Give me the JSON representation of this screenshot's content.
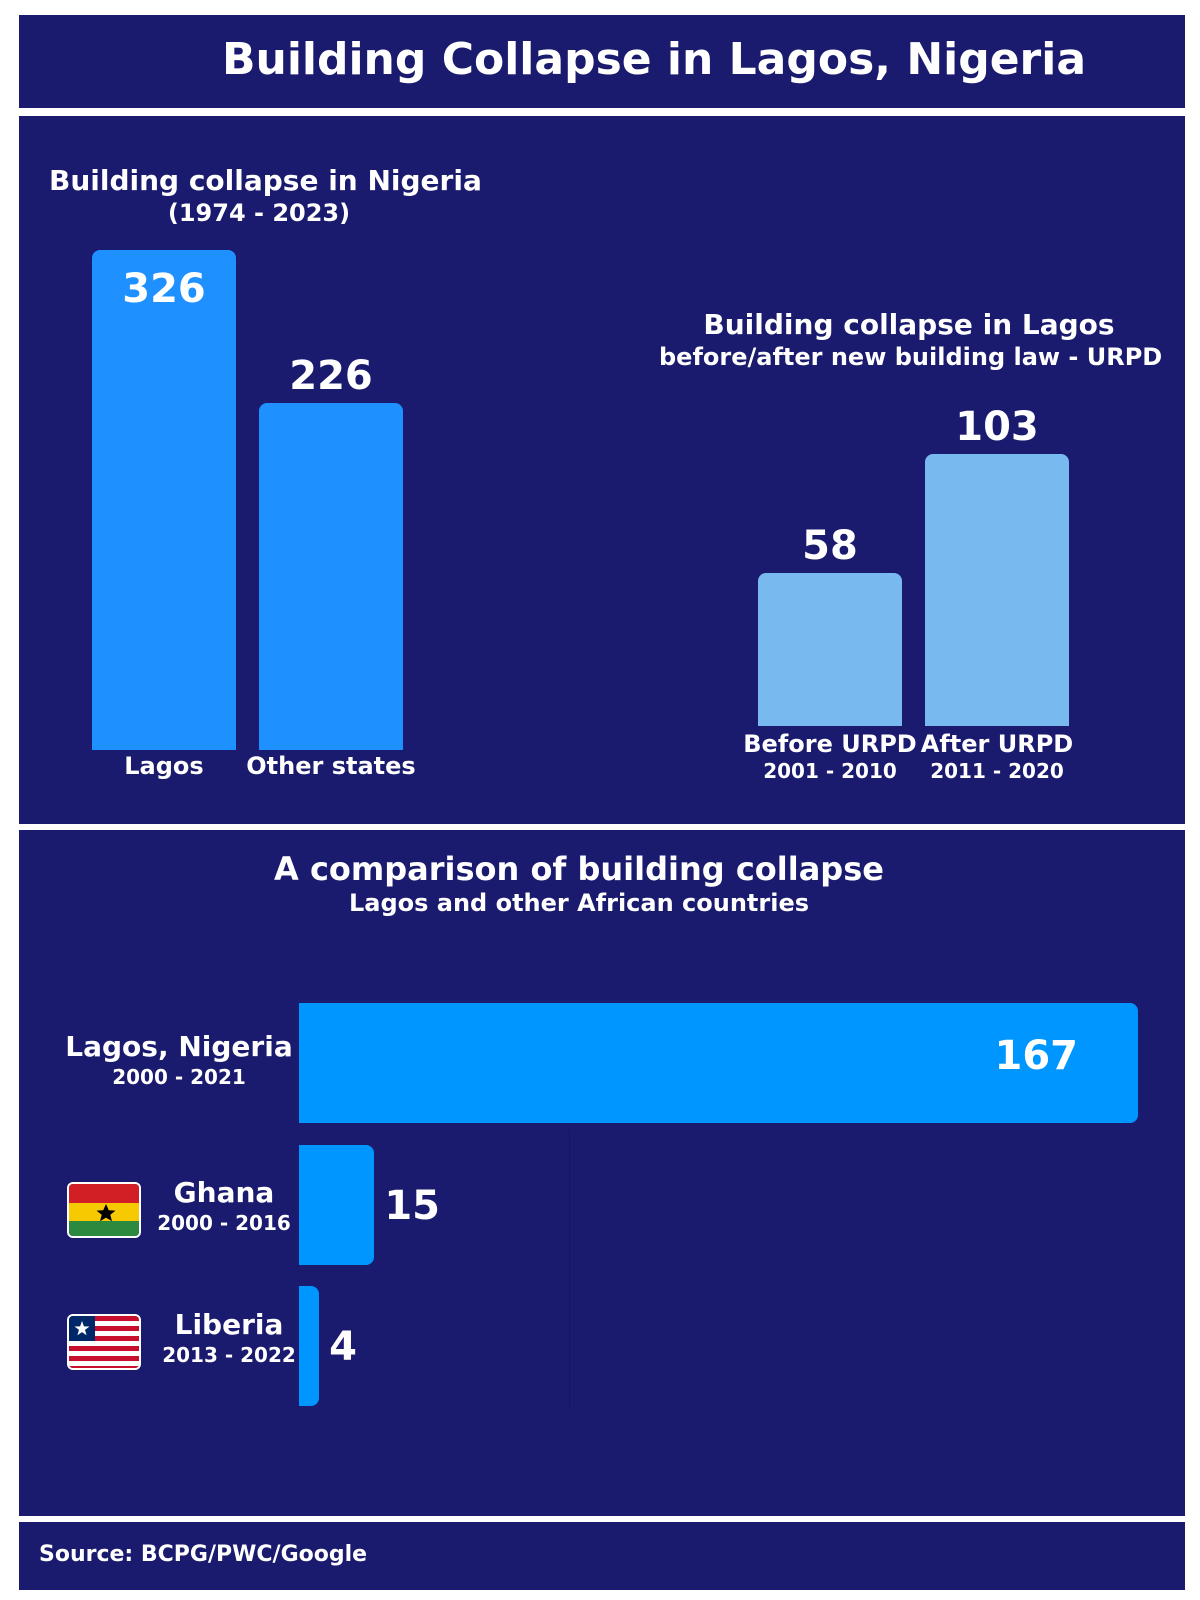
{
  "header": {
    "title": "Building Collapse  in Lagos, Nigeria"
  },
  "colors": {
    "background": "#1a1a6e",
    "bar_bright": "#1e90ff",
    "bar_light": "#78b9ef",
    "bar_cyan": "#0096ff"
  },
  "chart_data": [
    {
      "type": "bar",
      "title": "Building collapse in Nigeria",
      "subtitle": "(1974 - 2023)",
      "categories": [
        "Lagos",
        "Other states"
      ],
      "values": [
        326,
        226
      ],
      "ylim": [
        0,
        326
      ],
      "grid": false
    },
    {
      "type": "bar",
      "title": "Building collapse in Lagos",
      "subtitle": "before/after new building law - URPD",
      "categories": [
        "Before URPD",
        "After URPD"
      ],
      "periods": [
        "2001 - 2010",
        "2011 - 2020"
      ],
      "values": [
        58,
        103
      ],
      "ylim": [
        0,
        103
      ],
      "grid": false
    },
    {
      "type": "bar",
      "orientation": "horizontal",
      "title": "A comparison of building collapse",
      "subtitle": "Lagos and other African countries",
      "categories": [
        "Lagos, Nigeria",
        "Ghana",
        "Liberia"
      ],
      "periods": [
        "2000 - 2021",
        "2000 - 2016",
        "2013 - 2022"
      ],
      "values": [
        167,
        15,
        4
      ],
      "xlim": [
        0,
        167
      ],
      "grid": false
    }
  ],
  "icons": {
    "ghana": "ghana-flag-icon",
    "liberia": "liberia-flag-icon"
  },
  "footer": {
    "source": "Source: BCPG/PWC/Google"
  }
}
